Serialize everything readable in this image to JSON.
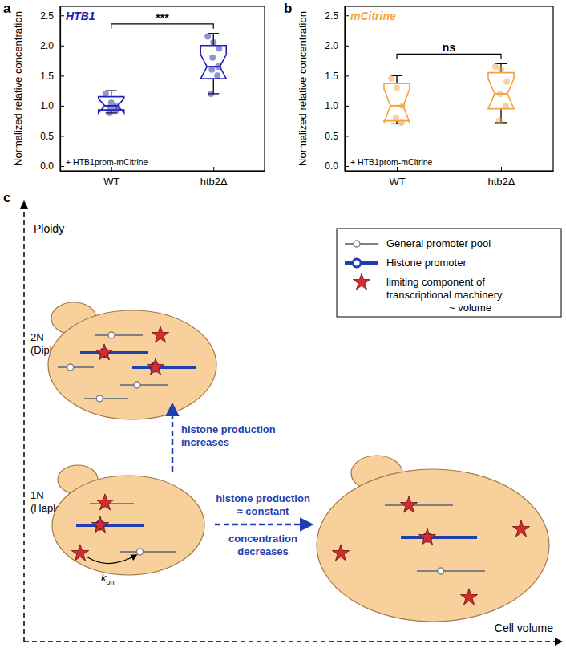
{
  "chart_data": [
    {
      "type": "box",
      "label": "a",
      "title": "HTB1",
      "color": "#2323b0",
      "annotation": "+ HTB1prom-mCitrine",
      "y_label": "Normalized relative concentration",
      "categories": [
        "WT",
        "htb2Δ"
      ],
      "boxes": [
        {
          "low": 0.88,
          "q1": 0.93,
          "median": 1.0,
          "q3": 1.15,
          "high": 1.25,
          "notch": [
            0.88,
            1.12
          ],
          "points": [
            1.2,
            1.05,
            1.0,
            0.96,
            0.92,
            0.88
          ]
        },
        {
          "low": 1.2,
          "q1": 1.45,
          "median": 1.65,
          "q3": 2.0,
          "high": 2.2,
          "notch": [
            1.45,
            1.85
          ],
          "points": [
            2.15,
            2.05,
            1.95,
            1.8,
            1.65,
            1.6,
            1.5,
            1.2
          ]
        }
      ],
      "significance": "***",
      "ylim": [
        -0.08,
        2.65
      ],
      "yticks": [
        {
          "value": 0,
          "label": "0.0"
        },
        0.5,
        {
          "value": 1,
          "label": "1.0"
        },
        1.5,
        {
          "value": 2,
          "label": "2.0"
        },
        2.5
      ]
    },
    {
      "type": "box",
      "label": "b",
      "title": "mCitrine",
      "color": "#f4a13f",
      "annotation": "+ HTB1prom-mCitrine",
      "y_label": "Normalized relative concentration",
      "categories": [
        "WT",
        "htb2Δ"
      ],
      "boxes": [
        {
          "low": 0.7,
          "q1": 0.75,
          "median": 1.0,
          "q3": 1.37,
          "high": 1.5,
          "notch": [
            0.72,
            1.28
          ],
          "points": [
            1.45,
            1.3,
            1.0,
            0.8,
            0.72
          ]
        },
        {
          "low": 0.72,
          "q1": 0.95,
          "median": 1.2,
          "q3": 1.55,
          "high": 1.7,
          "notch": [
            0.95,
            1.45
          ],
          "points": [
            1.65,
            1.6,
            1.4,
            1.2,
            1.0,
            0.75
          ]
        }
      ],
      "significance": "ns",
      "ylim": [
        -0.08,
        2.65
      ],
      "yticks": [
        {
          "value": 0,
          "label": "0.0"
        },
        0.5,
        {
          "value": 1,
          "label": "1.0"
        },
        1.5,
        {
          "value": 2,
          "label": "2.0"
        },
        2.5
      ]
    }
  ],
  "diagram": {
    "label": "c",
    "y_axis": "Ploidy",
    "x_axis": "Cell volume",
    "levels": [
      {
        "label": "2N",
        "sublabel": "(Diploid)"
      },
      {
        "label": "1N",
        "sublabel": "(Haploid)"
      }
    ],
    "arrows": {
      "up": [
        "histone production",
        "increases"
      ],
      "right_above": [
        "histone production",
        "≈ constant"
      ],
      "right_below": [
        "concentration",
        "decreases"
      ]
    },
    "rate": {
      "symbol": "k",
      "subscript": "on"
    },
    "legend": [
      {
        "label": [
          "General promoter pool"
        ]
      },
      {
        "label": [
          "Histone promoter"
        ]
      },
      {
        "label": [
          "limiting component of",
          "transcriptional machinery",
          "~ volume"
        ]
      }
    ]
  }
}
